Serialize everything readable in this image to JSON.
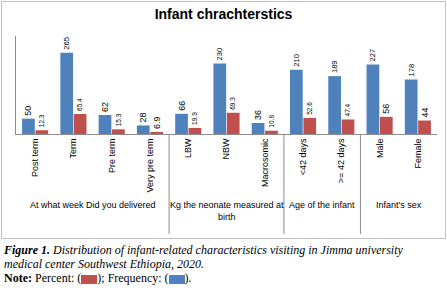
{
  "chart_data": {
    "type": "bar",
    "title": "Infant chrachterstics",
    "categories": [
      "Post term",
      "Term",
      "Pre term",
      "Very pre term",
      "LBW",
      "NBW",
      "Macrosomic",
      "<42 days",
      ">= 42 days",
      "Male",
      "Female"
    ],
    "groups": [
      {
        "label": "At what week Did you delivered",
        "count": 4
      },
      {
        "label": "Kg the neonate measured at birth",
        "count": 3
      },
      {
        "label": "Age of the infant",
        "count": 2
      },
      {
        "label": "Infant's sex",
        "count": 2
      }
    ],
    "series": [
      {
        "name": "Frequency",
        "color": "#4F81BD",
        "values": [
          50,
          265,
          62,
          28,
          66,
          230,
          36,
          210,
          189,
          227,
          178
        ]
      },
      {
        "name": "Percent",
        "color": "#C0504D",
        "values": [
          12.3,
          65.4,
          15.3,
          6.9,
          19.9,
          69.3,
          10.8,
          52.6,
          47.4,
          56,
          44
        ]
      }
    ],
    "ylim": [
      0,
      320
    ],
    "yticks": [],
    "tick_labels": "x",
    "data_labels": true,
    "grid": false,
    "caption": {
      "figure_label": "Figure 1.",
      "text": "Distribution of infant-related characteristics visiting in Jimma university medical center Southwest Ethiopia, 2020.",
      "note": [
        {
          "text": "Note:"
        },
        {
          "text": "Percent: ("
        },
        {
          "swatch": "Percent"
        },
        {
          "text": "); Frequency: ("
        },
        {
          "swatch": "Frequency"
        },
        {
          "text": ")."
        }
      ]
    }
  }
}
